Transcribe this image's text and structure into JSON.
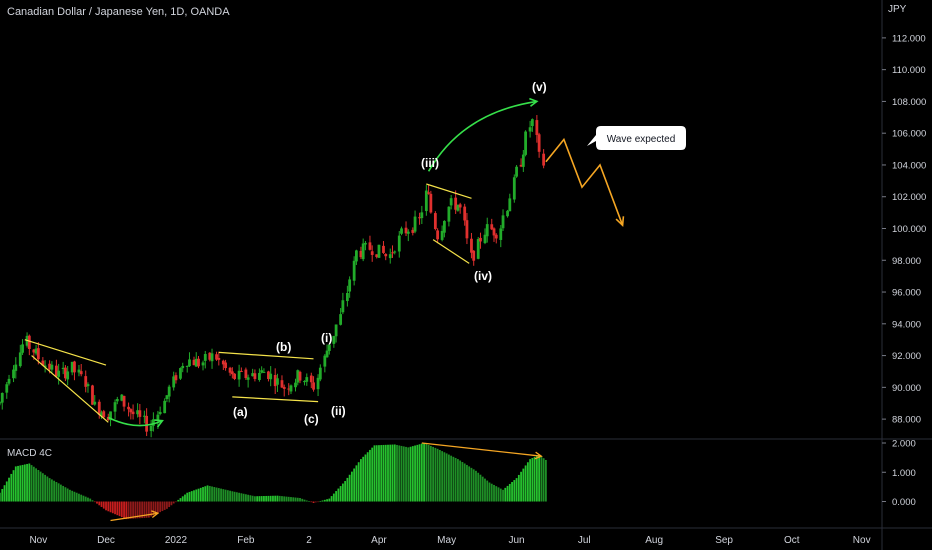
{
  "header": {
    "title": "Canadian Dollar / Japanese Yen, 1D, OANDA"
  },
  "colors": {
    "background": "#000000",
    "up_candle": "#22ab2a",
    "down_candle": "#e0302e",
    "trendline_yellow": "#f5e34a",
    "arrow_green": "#36e04a",
    "projection_orange": "#f5a623",
    "macd_up": "#26c22f",
    "macd_down": "#c81e1e",
    "text": "#d1d4dc"
  },
  "price_axis": {
    "currency": "JPY",
    "ticks": [
      "112.000",
      "110.000",
      "108.000",
      "106.000",
      "104.000",
      "102.000",
      "100.000",
      "98.000",
      "96.000",
      "94.000",
      "92.000",
      "90.000",
      "88.000"
    ]
  },
  "macd_panel": {
    "label": "MACD 4C",
    "ticks": [
      "2.000",
      "1.000",
      "0.000"
    ]
  },
  "time_axis": {
    "ticks": [
      "Nov",
      "Dec",
      "2022",
      "Feb",
      "2",
      "Apr",
      "May",
      "Jun",
      "Jul",
      "Aug",
      "Sep",
      "Oct",
      "Nov"
    ]
  },
  "wave_labels": {
    "i": "(i)",
    "ii": "(ii)",
    "iii": "(iii)",
    "iv": "(iv)",
    "v": "(v)",
    "a": "(a)",
    "b": "(b)",
    "c": "(c)"
  },
  "callout": {
    "text": "Wave expected"
  },
  "chart_data": {
    "type": "candlestick",
    "title": "Canadian Dollar / Japanese Yen, 1D, OANDA",
    "y_unit": "JPY",
    "ylim": [
      87.0,
      113.0
    ],
    "x_range": [
      "2021-10-15",
      "2022-11-10"
    ],
    "close_path": [
      [
        "2021-10-15",
        89.0
      ],
      [
        "2021-10-20",
        91.2
      ],
      [
        "2021-10-26",
        92.9
      ],
      [
        "2021-11-03",
        91.6
      ],
      [
        "2021-11-10",
        90.8
      ],
      [
        "2021-11-16",
        91.2
      ],
      [
        "2021-11-22",
        90.3
      ],
      [
        "2021-11-26",
        88.8
      ],
      [
        "2021-12-02",
        88.3
      ],
      [
        "2021-12-07",
        89.3
      ],
      [
        "2021-12-12",
        88.5
      ],
      [
        "2021-12-20",
        87.5
      ],
      [
        "2021-12-28",
        89.5
      ],
      [
        "2022-01-05",
        91.8
      ],
      [
        "2022-01-12",
        91.5
      ],
      [
        "2022-01-18",
        92.0
      ],
      [
        "2022-01-26",
        90.6
      ],
      [
        "2022-02-04",
        90.8
      ],
      [
        "2022-02-10",
        91.0
      ],
      [
        "2022-02-18",
        90.0
      ],
      [
        "2022-02-25",
        90.8
      ],
      [
        "2022-03-03",
        90.0
      ],
      [
        "2022-03-08",
        92.0
      ],
      [
        "2022-03-15",
        94.5
      ],
      [
        "2022-03-22",
        98.5
      ],
      [
        "2022-03-29",
        98.8
      ],
      [
        "2022-04-05",
        98.2
      ],
      [
        "2022-04-12",
        99.8
      ],
      [
        "2022-04-19",
        100.5
      ],
      [
        "2022-04-22",
        102.5
      ],
      [
        "2022-04-27",
        99.5
      ],
      [
        "2022-05-02",
        101.5
      ],
      [
        "2022-05-07",
        101.5
      ],
      [
        "2022-05-12",
        98.0
      ],
      [
        "2022-05-18",
        100.0
      ],
      [
        "2022-05-24",
        99.8
      ],
      [
        "2022-05-29",
        102.0
      ],
      [
        "2022-06-03",
        104.5
      ],
      [
        "2022-06-08",
        107.0
      ],
      [
        "2022-06-11",
        104.5
      ],
      [
        "2022-06-14",
        103.8
      ]
    ],
    "candle_range": [
      "2021-10-15",
      "2022-06-14"
    ],
    "projection": {
      "name": "Wave expected",
      "points": [
        [
          "2022-06-14",
          104.2
        ],
        [
          "2022-06-22",
          105.6
        ],
        [
          "2022-06-30",
          102.6
        ],
        [
          "2022-07-08",
          104.0
        ],
        [
          "2022-07-18",
          100.2
        ]
      ]
    },
    "wave_points": [
      {
        "label": "(a)",
        "date": "2022-01-24",
        "price": 89.0
      },
      {
        "label": "(b)",
        "date": "2022-02-15",
        "price": 92.5
      },
      {
        "label": "(c)",
        "date": "2022-03-05",
        "price": 88.7
      },
      {
        "label": "(i)",
        "date": "2022-03-05",
        "price": 93.3
      },
      {
        "label": "(ii)",
        "date": "2022-03-12",
        "price": 88.6
      },
      {
        "label": "(iii)",
        "date": "2022-04-24",
        "price": 104.0
      },
      {
        "label": "(iv)",
        "date": "2022-05-13",
        "price": 97.0
      },
      {
        "label": "(v)",
        "date": "2022-06-09",
        "price": 108.5
      }
    ],
    "trendlines": [
      {
        "name": "channel-1-upper",
        "points": [
          [
            "2021-10-26",
            93.0
          ],
          [
            "2021-12-01",
            91.4
          ]
        ]
      },
      {
        "name": "channel-1-lower",
        "points": [
          [
            "2021-10-29",
            92.0
          ],
          [
            "2021-12-02",
            87.8
          ]
        ]
      },
      {
        "name": "abc-upper",
        "points": [
          [
            "2022-01-20",
            92.2
          ],
          [
            "2022-03-03",
            91.8
          ]
        ]
      },
      {
        "name": "abc-lower",
        "points": [
          [
            "2022-01-26",
            89.4
          ],
          [
            "2022-03-05",
            89.1
          ]
        ]
      },
      {
        "name": "iv-upper",
        "points": [
          [
            "2022-04-22",
            102.8
          ],
          [
            "2022-05-12",
            101.9
          ]
        ]
      },
      {
        "name": "iv-lower",
        "points": [
          [
            "2022-04-25",
            99.3
          ],
          [
            "2022-05-11",
            97.8
          ]
        ]
      }
    ],
    "macd": {
      "name": "MACD 4C",
      "ylim": [
        -0.7,
        2.0
      ],
      "path": [
        [
          "2021-10-15",
          0.3
        ],
        [
          "2021-10-22",
          1.2
        ],
        [
          "2021-10-28",
          1.3
        ],
        [
          "2021-11-06",
          0.8
        ],
        [
          "2021-11-15",
          0.4
        ],
        [
          "2021-11-24",
          0.1
        ],
        [
          "2021-12-01",
          -0.3
        ],
        [
          "2021-12-10",
          -0.6
        ],
        [
          "2021-12-20",
          -0.55
        ],
        [
          "2021-12-28",
          -0.25
        ],
        [
          "2022-01-06",
          0.3
        ],
        [
          "2022-01-15",
          0.55
        ],
        [
          "2022-01-26",
          0.35
        ],
        [
          "2022-02-05",
          0.18
        ],
        [
          "2022-02-15",
          0.2
        ],
        [
          "2022-02-25",
          0.12
        ],
        [
          "2022-03-03",
          -0.05
        ],
        [
          "2022-03-10",
          0.1
        ],
        [
          "2022-03-17",
          0.7
        ],
        [
          "2022-03-24",
          1.45
        ],
        [
          "2022-03-30",
          1.92
        ],
        [
          "2022-04-08",
          1.95
        ],
        [
          "2022-04-14",
          1.85
        ],
        [
          "2022-04-21",
          2.0
        ],
        [
          "2022-04-27",
          1.8
        ],
        [
          "2022-05-06",
          1.45
        ],
        [
          "2022-05-14",
          1.05
        ],
        [
          "2022-05-20",
          0.65
        ],
        [
          "2022-05-26",
          0.4
        ],
        [
          "2022-06-01",
          0.8
        ],
        [
          "2022-06-07",
          1.45
        ],
        [
          "2022-06-11",
          1.6
        ],
        [
          "2022-06-14",
          1.42
        ]
      ],
      "divergence_lines": [
        {
          "name": "macd-top-divergence",
          "color": "orange",
          "points": [
            [
              "2022-04-20",
              2.0
            ],
            [
              "2022-06-12",
              1.55
            ]
          ]
        },
        {
          "name": "macd-bottom-divergence",
          "color": "orange",
          "points": [
            [
              "2021-12-03",
              -0.65
            ],
            [
              "2021-12-24",
              -0.4
            ]
          ]
        }
      ]
    },
    "arrows": [
      {
        "name": "green-arrow-dec",
        "color": "green",
        "points": [
          [
            "2021-12-02",
            88.1
          ],
          [
            "2021-12-15",
            87.2
          ],
          [
            "2021-12-26",
            87.9
          ]
        ]
      },
      {
        "name": "green-arrow-top",
        "color": "green",
        "points": [
          [
            "2022-04-23",
            103.6
          ],
          [
            "2022-05-08",
            107.3
          ],
          [
            "2022-06-10",
            108.0
          ]
        ]
      }
    ]
  }
}
